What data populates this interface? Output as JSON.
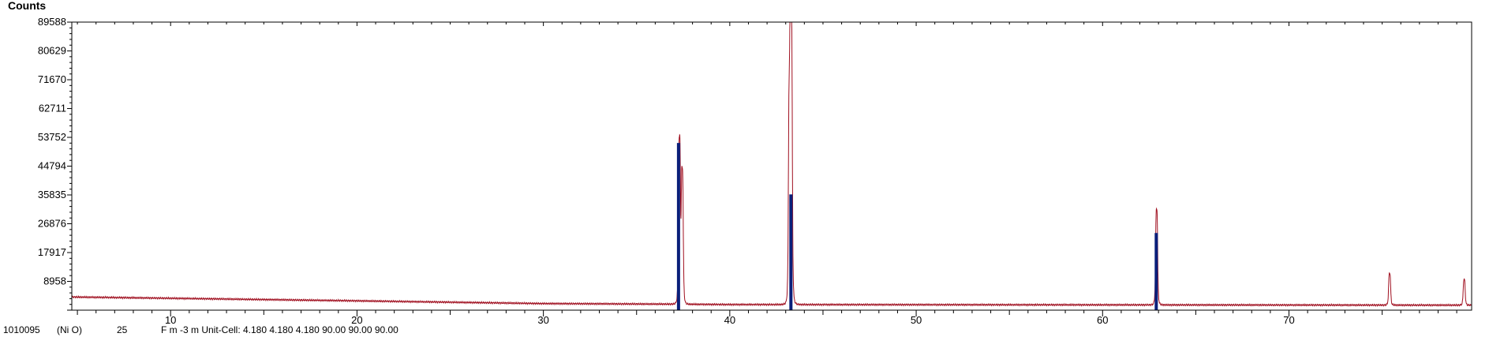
{
  "chart_data": {
    "type": "line",
    "title": "",
    "xlabel": "",
    "ylabel": "Counts",
    "xlim": [
      4.7,
      79.8
    ],
    "ylim": [
      0,
      89588
    ],
    "x_ticks": [
      10,
      20,
      30,
      40,
      50,
      60,
      70
    ],
    "y_ticks": [
      8958,
      17917,
      26876,
      35835,
      44794,
      53752,
      62711,
      71670,
      80629,
      89588
    ],
    "grid": false,
    "colors": {
      "pattern": "#a01020",
      "reference": "#0a1f7a",
      "axes": "#000000"
    },
    "series": [
      {
        "role": "measured-pattern",
        "baseline": [
          [
            4.7,
            4100
          ],
          [
            10,
            3700
          ],
          [
            20,
            2900
          ],
          [
            30,
            2050
          ],
          [
            36,
            1900
          ],
          [
            40,
            1750
          ],
          [
            50,
            1700
          ],
          [
            60,
            1650
          ],
          [
            70,
            1600
          ],
          [
            79.8,
            1550
          ]
        ],
        "peaks": [
          {
            "x": 37.3,
            "y": 53000
          },
          {
            "x": 37.45,
            "y": 43000
          },
          {
            "x": 43.3,
            "y": 89588
          },
          {
            "x": 43.2,
            "y": 67000
          },
          {
            "x": 62.9,
            "y": 31500
          },
          {
            "x": 75.4,
            "y": 11500
          },
          {
            "x": 79.4,
            "y": 9500
          }
        ]
      },
      {
        "role": "reference-pattern",
        "sticks": [
          {
            "x": 37.25,
            "y": 52000
          },
          {
            "x": 43.28,
            "y": 36000
          },
          {
            "x": 62.88,
            "y": 24000
          }
        ]
      }
    ],
    "reference_info": {
      "code": "1010095",
      "compound": "(Ni O)",
      "score": "25",
      "description": "F m -3 m Unit-Cell: 4.180 4.180 4.180 90.00 90.00 90.00"
    }
  }
}
